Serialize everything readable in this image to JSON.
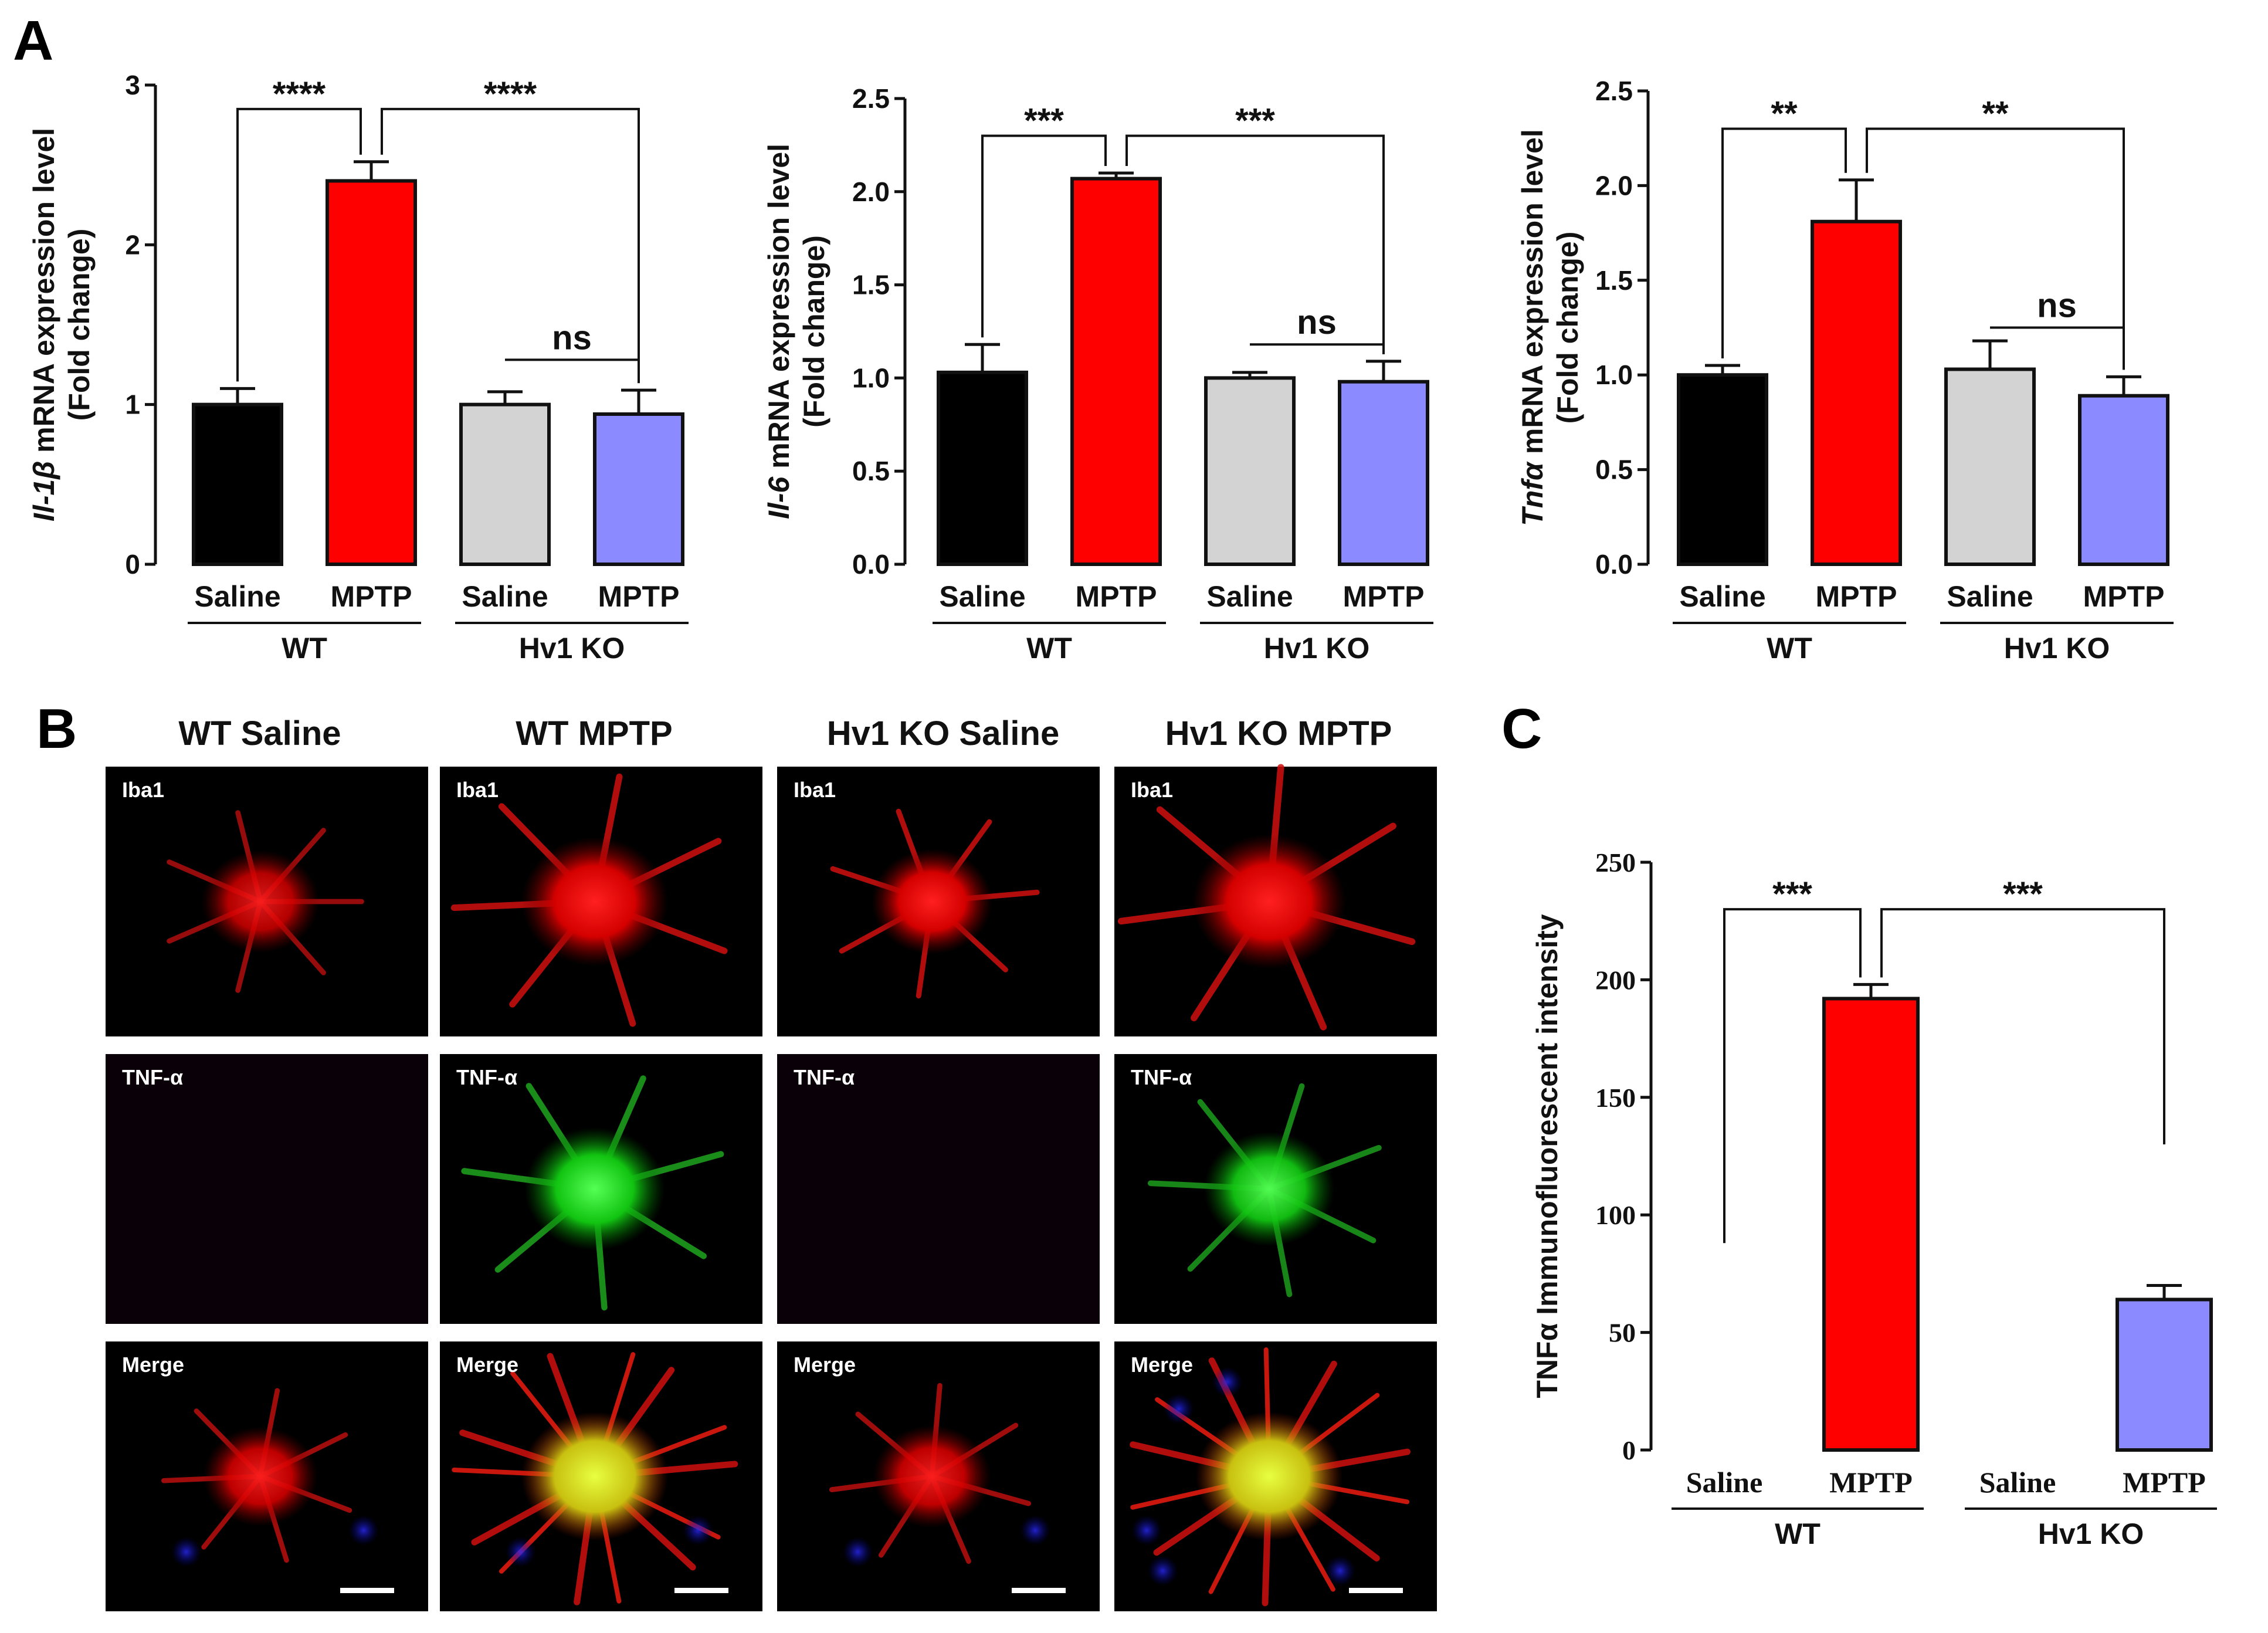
{
  "panels": {
    "A": "A",
    "B": "B",
    "C": "C"
  },
  "chart_data": [
    {
      "type": "bar",
      "panel": "A",
      "ylabel_gene": "Il-1β",
      "ylabel_rest": " mRNA expression level",
      "ylabel_line2": "(Fold change)",
      "categories": [
        "Saline",
        "MPTP",
        "Saline",
        "MPTP"
      ],
      "groups": [
        "WT",
        "Hv1 KO"
      ],
      "values": [
        1.0,
        2.4,
        1.0,
        0.94
      ],
      "errors": [
        0.1,
        0.12,
        0.08,
        0.15
      ],
      "colors": [
        "#000000",
        "#ff0000",
        "#d3d3d3",
        "#8b8bff"
      ],
      "ylim": [
        0,
        3
      ],
      "yticks": [
        0,
        1,
        2,
        3
      ],
      "tick_labels": [
        "0",
        "1",
        "2",
        "3"
      ],
      "comparisons": [
        {
          "from": 0,
          "to": 1,
          "label": "****",
          "y": 2.85
        },
        {
          "from": 1,
          "to": 3,
          "label": "****",
          "y": 2.85
        },
        {
          "from": 2,
          "to": 3,
          "label": "ns",
          "y": 1.28
        }
      ]
    },
    {
      "type": "bar",
      "panel": "A",
      "ylabel_gene": "Il-6",
      "ylabel_rest": " mRNA expression level",
      "ylabel_line2": "(Fold change)",
      "categories": [
        "Saline",
        "MPTP",
        "Saline",
        "MPTP"
      ],
      "groups": [
        "WT",
        "Hv1 KO"
      ],
      "values": [
        1.03,
        2.07,
        1.0,
        0.98
      ],
      "errors": [
        0.15,
        0.03,
        0.03,
        0.11
      ],
      "colors": [
        "#000000",
        "#ff0000",
        "#d3d3d3",
        "#8b8bff"
      ],
      "ylim": [
        0,
        2.5
      ],
      "yticks": [
        0,
        0.5,
        1.0,
        1.5,
        2.0,
        2.5
      ],
      "tick_labels": [
        "0.0",
        "0.5",
        "1.0",
        "1.5",
        "2.0",
        "2.5"
      ],
      "comparisons": [
        {
          "from": 0,
          "to": 1,
          "label": "***",
          "y": 2.3
        },
        {
          "from": 1,
          "to": 3,
          "label": "***",
          "y": 2.3
        },
        {
          "from": 2,
          "to": 3,
          "label": "ns",
          "y": 1.18
        }
      ]
    },
    {
      "type": "bar",
      "panel": "A",
      "ylabel_gene": "Tnfα",
      "ylabel_rest": " mRNA expression level",
      "ylabel_line2": "(Fold change)",
      "categories": [
        "Saline",
        "MPTP",
        "Saline",
        "MPTP"
      ],
      "groups": [
        "WT",
        "Hv1 KO"
      ],
      "values": [
        1.0,
        1.81,
        1.03,
        0.89
      ],
      "errors": [
        0.05,
        0.22,
        0.15,
        0.1
      ],
      "colors": [
        "#000000",
        "#ff0000",
        "#d3d3d3",
        "#8b8bff"
      ],
      "ylim": [
        0,
        2.5
      ],
      "yticks": [
        0,
        0.5,
        1.0,
        1.5,
        2.0,
        2.5
      ],
      "tick_labels": [
        "0.0",
        "0.5",
        "1.0",
        "1.5",
        "2.0",
        "2.5"
      ],
      "comparisons": [
        {
          "from": 0,
          "to": 1,
          "label": "**",
          "y": 2.3
        },
        {
          "from": 1,
          "to": 3,
          "label": "**",
          "y": 2.3
        },
        {
          "from": 2,
          "to": 3,
          "label": "ns",
          "y": 1.25
        }
      ]
    },
    {
      "type": "bar",
      "panel": "C",
      "ylabel": "TNFα Immunofluorescent intensity",
      "categories": [
        "Saline",
        "MPTP",
        "Saline",
        "MPTP"
      ],
      "groups": [
        "WT",
        "Hv1 KO"
      ],
      "values": [
        0,
        192,
        0,
        64
      ],
      "errors": [
        0,
        6,
        0,
        6
      ],
      "colors": [
        "#ffffff",
        "#ff0000",
        "#ffffff",
        "#8b8bff"
      ],
      "ylim": [
        0,
        250
      ],
      "yticks": [
        0,
        50,
        100,
        150,
        200,
        250
      ],
      "tick_labels": [
        "0",
        "50",
        "100",
        "150",
        "200",
        "250"
      ],
      "comparisons": [
        {
          "from": 0,
          "to": 1,
          "label": "***",
          "y": 230,
          "left_drop_to": 88
        },
        {
          "from": 1,
          "to": 3,
          "label": "***",
          "y": 230,
          "right_drop_to": 130
        }
      ]
    }
  ],
  "micrographs": {
    "columns": [
      "WT Saline",
      "WT MPTP",
      "Hv1 KO Saline",
      "Hv1 KO MPTP"
    ],
    "rows": [
      "Iba1",
      "TNF-α",
      "Merge"
    ]
  }
}
